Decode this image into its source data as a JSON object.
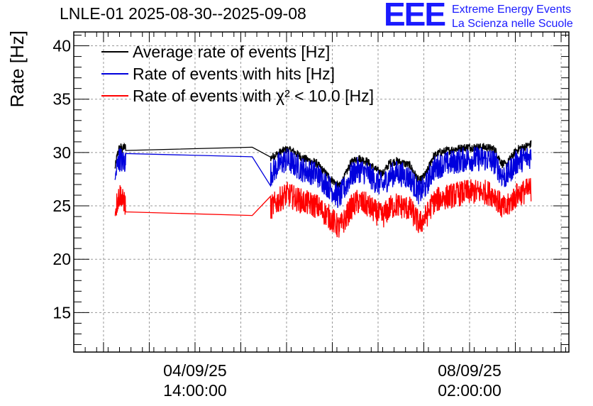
{
  "header": {
    "title": "LNLE-01 2025-08-30--2025-09-08"
  },
  "logo": {
    "mark": "EEE",
    "line1": "Extreme Energy Events",
    "line2": "La Scienza nelle Scuole",
    "color": "#1a1aff"
  },
  "chart_data": {
    "type": "line",
    "title": "LNLE-01 2025-08-30--2025-09-08",
    "ylabel": "Rate [Hz]",
    "xlabel": "",
    "ylim": [
      11.3,
      41.3
    ],
    "yticks": [
      15,
      20,
      25,
      30,
      35,
      40
    ],
    "xlim_hours": [
      0,
      108.2
    ],
    "xtick_labels": [
      {
        "hour": 26.5,
        "date": "04/09/25",
        "time": "14:00:00"
      },
      {
        "hour": 86.5,
        "date": "08/09/25",
        "time": "02:00:00"
      }
    ],
    "grid": true,
    "legend": "top-left",
    "series": [
      {
        "name": "Average rate of events [Hz]",
        "color": "#000000",
        "noise": 0.4,
        "x": [
          9.0,
          9.4,
          9.8,
          10.3,
          10.6,
          11.0,
          11.4,
          39.0,
          43.0,
          45.0,
          46.5,
          48.0,
          50.0,
          53.0,
          56.0,
          58.0,
          59.5,
          60.5,
          62.0,
          64.0,
          66.0,
          67.5,
          69.0,
          70.5,
          72.0,
          73.5,
          74.5,
          75.5,
          77.0,
          78.5,
          80.0,
          83.0,
          86.0,
          90.0,
          92.0,
          93.5,
          94.5,
          95.5,
          97.0,
          99.0,
          100.0
        ],
        "y": [
          28.5,
          29.5,
          30.3,
          30.5,
          30.3,
          30.5,
          30.5,
          30.5,
          29.5,
          30.0,
          30.3,
          30.1,
          29.5,
          29.0,
          27.6,
          26.8,
          28.0,
          29.0,
          29.5,
          29.2,
          28.4,
          28.0,
          29.0,
          29.2,
          29.0,
          28.8,
          28.0,
          27.3,
          28.0,
          29.6,
          30.0,
          30.3,
          30.5,
          30.5,
          30.3,
          29.0,
          28.8,
          29.5,
          30.3,
          30.6,
          30.8
        ]
      },
      {
        "name": "Rate of events with hits [Hz]",
        "color": "#0000dd",
        "noise": 1.2,
        "x": [
          9.0,
          9.4,
          9.8,
          10.3,
          10.6,
          11.0,
          11.4,
          39.0,
          43.0,
          45.0,
          46.5,
          48.0,
          50.0,
          53.0,
          56.0,
          58.0,
          59.5,
          60.5,
          62.0,
          64.0,
          66.0,
          67.5,
          69.0,
          70.5,
          72.0,
          73.5,
          74.5,
          75.5,
          77.0,
          78.5,
          80.0,
          83.0,
          86.0,
          90.0,
          92.0,
          93.5,
          94.5,
          95.5,
          97.0,
          99.0,
          100.0
        ],
        "y": [
          27.5,
          28.5,
          29.3,
          29.5,
          29.0,
          29.3,
          29.0,
          29.6,
          28.0,
          28.9,
          29.3,
          28.9,
          28.4,
          28.0,
          26.7,
          25.8,
          26.9,
          27.8,
          28.4,
          28.1,
          27.3,
          26.9,
          27.8,
          28.1,
          27.9,
          27.6,
          26.9,
          26.2,
          26.9,
          28.4,
          28.8,
          29.1,
          29.4,
          29.4,
          29.1,
          27.9,
          27.7,
          28.4,
          29.2,
          29.5,
          29.7
        ]
      },
      {
        "name": "Rate of events with χ² < 10.0 [Hz]",
        "color": "#ff0000",
        "noise": 1.2,
        "x": [
          9.0,
          9.4,
          9.8,
          10.3,
          10.6,
          11.0,
          11.4,
          39.0,
          43.0,
          45.0,
          46.5,
          48.0,
          50.0,
          53.0,
          56.0,
          58.0,
          59.5,
          60.5,
          62.0,
          64.0,
          66.0,
          67.5,
          69.0,
          70.5,
          72.0,
          73.5,
          74.5,
          75.5,
          77.0,
          78.5,
          80.0,
          83.0,
          86.0,
          90.0,
          92.0,
          93.5,
          94.5,
          95.5,
          97.0,
          99.0,
          100.0
        ],
        "y": [
          24.2,
          25.2,
          25.8,
          26.2,
          25.4,
          25.5,
          24.8,
          24.1,
          24.8,
          25.6,
          26.1,
          25.8,
          25.4,
          25.0,
          23.9,
          22.9,
          23.9,
          24.8,
          25.4,
          25.1,
          24.4,
          24.0,
          24.8,
          25.1,
          24.9,
          24.7,
          24.0,
          23.3,
          24.0,
          25.3,
          25.7,
          26.0,
          26.3,
          26.3,
          26.0,
          24.9,
          24.7,
          25.4,
          26.1,
          26.4,
          26.6
        ]
      }
    ]
  }
}
